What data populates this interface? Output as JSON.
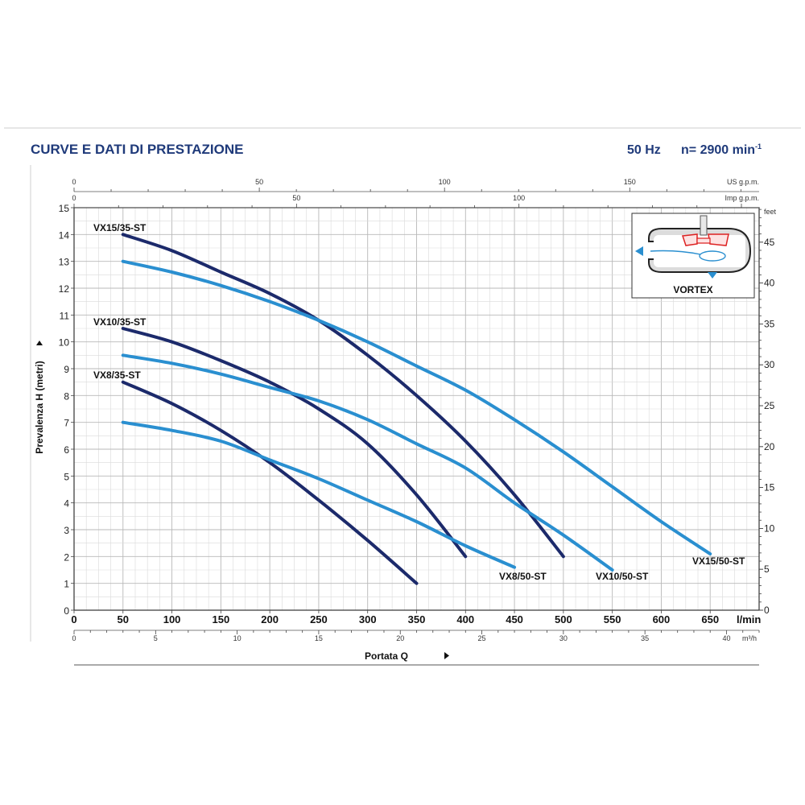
{
  "header": {
    "title": "CURVE E DATI DI PRESTAZIONE",
    "frequency": "50 Hz",
    "speed": "n= 2900 min",
    "speed_exp": "-1"
  },
  "inset": {
    "label": "VORTEX",
    "icon": "vortex-impeller-diagram-icon"
  },
  "colors": {
    "title": "#1f3a7a",
    "series_35": "#1c2a6b",
    "series_50": "#2a8fd0",
    "grid": "#c4c4c4",
    "frame": "#333333"
  },
  "axes": {
    "y_label": "Prevalenza H (metri)",
    "x_label": "Portata Q",
    "x_unit_lmin": "l/min",
    "x_unit_m3h": "m³/h",
    "x_unit_usgpm": "US g.p.m.",
    "x_unit_impgpm": "Imp g.p.m.",
    "y_unit_feet": "feet",
    "x_lmin_ticks": [
      "0",
      "50",
      "100",
      "150",
      "200",
      "250",
      "300",
      "350",
      "400",
      "450",
      "500",
      "550",
      "600",
      "650"
    ],
    "x_m3h_ticks": [
      "0",
      "5",
      "10",
      "15",
      "20",
      "25",
      "30",
      "35",
      "40"
    ],
    "x_usgpm_ticks": [
      "0",
      "50",
      "100",
      "150"
    ],
    "x_impgpm_ticks": [
      "0",
      "50",
      "100"
    ],
    "y_m_ticks": [
      "0",
      "1",
      "2",
      "3",
      "4",
      "5",
      "6",
      "7",
      "8",
      "9",
      "10",
      "11",
      "12",
      "13",
      "14",
      "15"
    ],
    "y_feet_ticks": [
      "0",
      "5",
      "10",
      "15",
      "20",
      "25",
      "30",
      "35",
      "40",
      "45"
    ]
  },
  "chart_data": {
    "type": "line",
    "title": "CURVE E DATI DI PRESTAZIONE",
    "xlabel": "Portata Q",
    "ylabel": "Prevalenza H (metri)",
    "x_unit": "l/min",
    "xlim": [
      0,
      700
    ],
    "ylim": [
      0,
      15
    ],
    "grid": true,
    "series": [
      {
        "name": "VX15/35-ST",
        "color": "#1c2a6b",
        "x": [
          50,
          100,
          150,
          200,
          250,
          300,
          350,
          400,
          450,
          500
        ],
        "y": [
          14.0,
          13.4,
          12.6,
          11.8,
          10.8,
          9.5,
          8.0,
          6.3,
          4.3,
          2.0
        ]
      },
      {
        "name": "VX15/50-ST",
        "color": "#2a8fd0",
        "x": [
          50,
          100,
          150,
          200,
          250,
          300,
          350,
          400,
          450,
          500,
          550,
          600,
          650
        ],
        "y": [
          13.0,
          12.6,
          12.1,
          11.5,
          10.8,
          10.0,
          9.1,
          8.2,
          7.1,
          5.9,
          4.6,
          3.3,
          2.1
        ]
      },
      {
        "name": "VX10/35-ST",
        "color": "#1c2a6b",
        "x": [
          50,
          100,
          150,
          200,
          250,
          300,
          350,
          400
        ],
        "y": [
          10.5,
          10.0,
          9.3,
          8.5,
          7.5,
          6.2,
          4.3,
          2.0
        ]
      },
      {
        "name": "VX10/50-ST",
        "color": "#2a8fd0",
        "x": [
          50,
          100,
          150,
          200,
          250,
          300,
          350,
          400,
          450,
          500,
          550
        ],
        "y": [
          9.5,
          9.2,
          8.8,
          8.3,
          7.8,
          7.1,
          6.2,
          5.3,
          4.0,
          2.8,
          1.5
        ]
      },
      {
        "name": "VX8/35-ST",
        "color": "#1c2a6b",
        "x": [
          50,
          100,
          150,
          200,
          250,
          300,
          350
        ],
        "y": [
          8.5,
          7.7,
          6.7,
          5.5,
          4.1,
          2.6,
          1.0
        ]
      },
      {
        "name": "VX8/50-ST",
        "color": "#2a8fd0",
        "x": [
          50,
          100,
          150,
          200,
          250,
          300,
          350,
          400,
          450
        ],
        "y": [
          7.0,
          6.7,
          6.3,
          5.6,
          4.9,
          4.1,
          3.3,
          2.4,
          1.6
        ]
      }
    ]
  }
}
